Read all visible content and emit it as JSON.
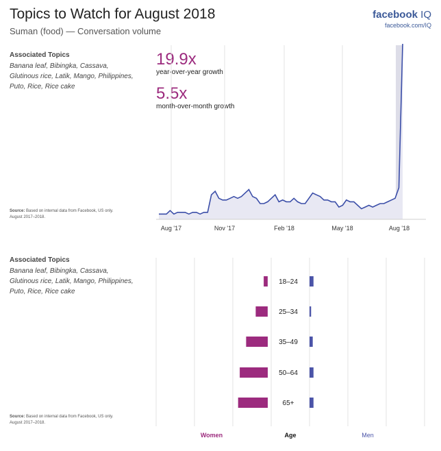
{
  "header": {
    "title": "Topics to Watch for August 2018",
    "subtitle": "Suman (food) — Conversation volume",
    "brand": "facebook",
    "brand_suffix": "IQ",
    "brand_url": "facebook.com/IQ"
  },
  "section1": {
    "topics_heading": "Associated Topics",
    "topics_text": "Banana leaf, Bibingka, Cassava, Glutinous rice, Latik, Mango, Philippines, Puto, Rice, Rice cake",
    "source_bold": "Source:",
    "source_text": "Based on internal data from Facebook, US only. August 2017–2018.",
    "metric1_value": "19.9x",
    "metric1_label": "year-over-year growth",
    "metric2_value": "5.5x",
    "metric2_label": "month-over-month growth"
  },
  "section2": {
    "topics_heading": "Associated Topics",
    "topics_text": "Banana leaf, Bibingka, Cassava, Glutinous rice, Latik, Mango, Philippines, Puto, Rice, Rice cake",
    "source_bold": "Source:",
    "source_text": "Based on internal data from Facebook, US only. August 2017–2018."
  },
  "colors": {
    "line": "#3b4ea8",
    "area": "#e8e8f3",
    "highlight": "#dddde8",
    "women": "#9c2b7e",
    "men": "#4b54a8",
    "grid": "#e3e3e3"
  },
  "chart_data": [
    {
      "type": "line",
      "x_ticks": [
        "Aug '17",
        "Nov '17",
        "Feb '18",
        "May '18",
        "Aug '18"
      ],
      "y_axis_labels": false,
      "grid": "vertical lines at ticks",
      "values": [
        3,
        3,
        3,
        5,
        3,
        4,
        4,
        4,
        3,
        4,
        4,
        3,
        4,
        4,
        14,
        16,
        12,
        11,
        11,
        12,
        13,
        12,
        13,
        15,
        17,
        13,
        12,
        9,
        9,
        10,
        12,
        14,
        10,
        11,
        10,
        10,
        12,
        10,
        9,
        9,
        12,
        15,
        14,
        13,
        11,
        11,
        10,
        10,
        7,
        8,
        11,
        10,
        10,
        8,
        6,
        7,
        8,
        7,
        8,
        9,
        9,
        10,
        11,
        12,
        18,
        100
      ]
    },
    {
      "type": "bar",
      "orientation": "horizontal-diverging",
      "categories": [
        "18–24",
        "25–34",
        "35–49",
        "50–64",
        "65+"
      ],
      "center_label": "Age",
      "series": [
        {
          "name": "Women",
          "values": [
            5,
            15,
            27,
            35,
            37
          ]
        },
        {
          "name": "Men",
          "values": [
            5,
            2,
            4,
            5,
            5
          ]
        }
      ]
    }
  ]
}
